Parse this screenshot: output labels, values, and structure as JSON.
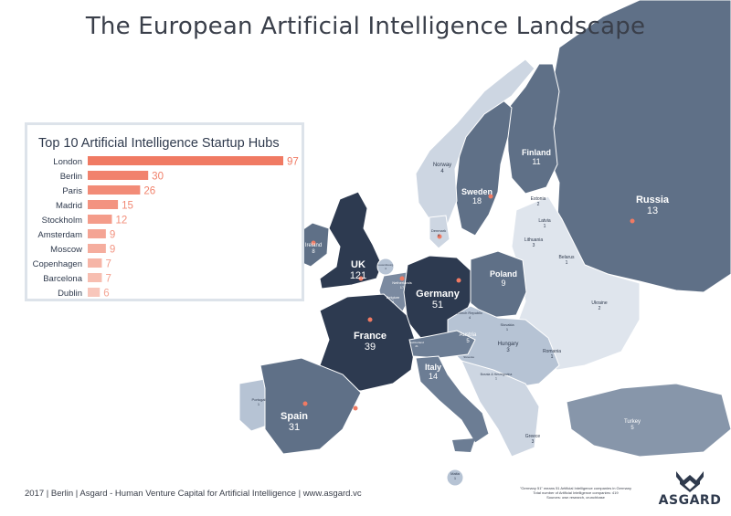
{
  "title": "The European Artificial Intelligence Landscape",
  "colors": {
    "bar_scale_dark": "#f07a63",
    "bar_scale_light": "#f8c6bb",
    "label_dark": "#f07a63",
    "label_light": "#f4a696",
    "map_dark": "#2d3a50",
    "map_mid": "#5f7087",
    "map_light": "#cdd6e2",
    "hub_marker": "#f07a63"
  },
  "chart_data": {
    "type": "bar",
    "orientation": "horizontal",
    "title": "Top 10 Artificial Intelligence Startup Hubs",
    "categories": [
      "London",
      "Berlin",
      "Paris",
      "Madrid",
      "Stockholm",
      "Amsterdam",
      "Moscow",
      "Copenhagen",
      "Barcelona",
      "Dublin"
    ],
    "values": [
      97,
      30,
      26,
      15,
      12,
      9,
      9,
      7,
      7,
      6
    ],
    "xlim": [
      0,
      97
    ],
    "xlabel": "",
    "ylabel": "",
    "grid": false
  },
  "map_labels": [
    {
      "id": "russia",
      "name": "Russia",
      "value": "13",
      "tone": "mid"
    },
    {
      "id": "finland",
      "name": "Finland",
      "value": "11",
      "tone": "mid"
    },
    {
      "id": "sweden",
      "name": "Sweden",
      "value": "18",
      "tone": "mid"
    },
    {
      "id": "norway",
      "name": "Norway",
      "value": "4",
      "tone": "light"
    },
    {
      "id": "estonia",
      "name": "Estonia",
      "value": "2",
      "tone": "light"
    },
    {
      "id": "latvia",
      "name": "Latvia",
      "value": "1",
      "tone": "light"
    },
    {
      "id": "lithuania",
      "name": "Lithuania",
      "value": "3",
      "tone": "light"
    },
    {
      "id": "belarus",
      "name": "Belarus",
      "value": "1",
      "tone": "light"
    },
    {
      "id": "denmark",
      "name": "Denmark",
      "value": "9",
      "tone": "light"
    },
    {
      "id": "ireland",
      "name": "Ireland",
      "value": "8",
      "tone": "mid"
    },
    {
      "id": "uk",
      "name": "UK",
      "value": "121",
      "tone": "dark"
    },
    {
      "id": "luxembourg",
      "name": "Luxembourg",
      "value": "4",
      "tone": "light"
    },
    {
      "id": "netherlands",
      "name": "Netherlands",
      "value": "17",
      "tone": "mid"
    },
    {
      "id": "belgium",
      "name": "Belgium",
      "value": "4",
      "tone": "mid"
    },
    {
      "id": "germany",
      "name": "Germany",
      "value": "51",
      "tone": "dark"
    },
    {
      "id": "poland",
      "name": "Poland",
      "value": "9",
      "tone": "mid"
    },
    {
      "id": "czech",
      "name": "Czech Republic",
      "value": "4",
      "tone": "light"
    },
    {
      "id": "slovakia",
      "name": "Slovakia",
      "value": "1",
      "tone": "light"
    },
    {
      "id": "ukraine",
      "name": "Ukraine",
      "value": "2",
      "tone": "light"
    },
    {
      "id": "austria",
      "name": "Austria",
      "value": "5",
      "tone": "mid"
    },
    {
      "id": "hungary",
      "name": "Hungary",
      "value": "3",
      "tone": "light"
    },
    {
      "id": "romania",
      "name": "Romania",
      "value": "1",
      "tone": "light"
    },
    {
      "id": "switzerland",
      "name": "Switzerland",
      "value": "21",
      "tone": "mid"
    },
    {
      "id": "slovenia",
      "name": "Slovenia",
      "value": "",
      "tone": "light"
    },
    {
      "id": "bosnia",
      "name": "Bosnia & Herzegovina",
      "value": "1",
      "tone": "light"
    },
    {
      "id": "france",
      "name": "France",
      "value": "39",
      "tone": "dark"
    },
    {
      "id": "italy",
      "name": "Italy",
      "value": "14",
      "tone": "mid"
    },
    {
      "id": "portugal",
      "name": "Portugal",
      "value": "1",
      "tone": "light"
    },
    {
      "id": "spain",
      "name": "Spain",
      "value": "31",
      "tone": "mid"
    },
    {
      "id": "greece",
      "name": "Greece",
      "value": "3",
      "tone": "light"
    },
    {
      "id": "turkey",
      "name": "Turkey",
      "value": "5",
      "tone": "mid"
    },
    {
      "id": "malta",
      "name": "Malta",
      "value": "1",
      "tone": "light"
    }
  ],
  "footer": "2017 | Berlin | Asgard - Human Venture Capital for Artificial Intelligence | www.asgard.vc",
  "footnote": [
    "\"Germany 51\" means 51 Artificial Intelligence companies in Germany",
    "Total number of Artificial Intelligence companies: 419",
    "Sources: own research, crunchbase"
  ],
  "brand": "ASGARD",
  "icons": {
    "brand_logo": "asgard-logo-icon",
    "hub_marker": "hub-marker-icon"
  }
}
